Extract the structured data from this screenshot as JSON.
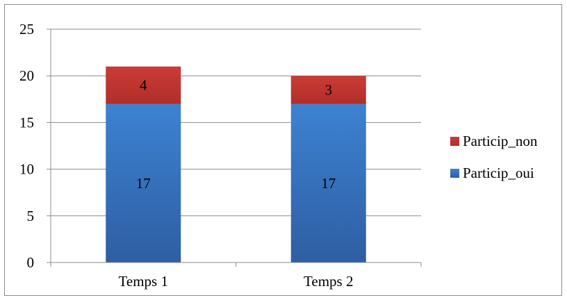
{
  "chart_data": {
    "type": "bar",
    "stacked": true,
    "categories": [
      "Temps 1",
      "Temps 2"
    ],
    "series": [
      {
        "name": "Particip_oui",
        "values": [
          17,
          17
        ],
        "color": "#3a78c3"
      },
      {
        "name": "Particip_non",
        "values": [
          4,
          3
        ],
        "color": "#c0342f"
      }
    ],
    "ylim": [
      0,
      25
    ],
    "yticks": [
      "0",
      "5",
      "10",
      "15",
      "20",
      "25"
    ],
    "grid": true,
    "legend": "right"
  }
}
